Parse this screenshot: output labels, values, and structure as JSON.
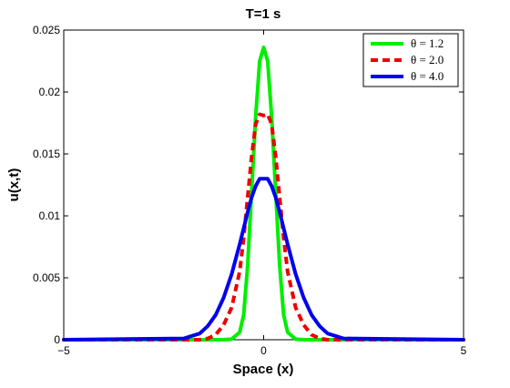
{
  "chart_data": {
    "type": "line",
    "title": "T=1 s",
    "xlabel": "Space (x)",
    "ylabel": "u(x,t)",
    "xlim": [
      -5,
      5
    ],
    "ylim": [
      0,
      0.025
    ],
    "xticks": [
      -5,
      0,
      5
    ],
    "xtick_labels": [
      "−5",
      "0",
      "5"
    ],
    "yticks": [
      0,
      0.005,
      0.01,
      0.015,
      0.02,
      0.025
    ],
    "ytick_labels": [
      "0",
      "0.005",
      "0.01",
      "0.015",
      "0.02",
      "0.025"
    ],
    "grid": false,
    "legend_position": "top-right",
    "x": [
      -5,
      -2,
      -1.6,
      -1.4,
      -1.2,
      -1.0,
      -0.8,
      -0.6,
      -0.5,
      -0.4,
      -0.3,
      -0.2,
      -0.1,
      0,
      0.1,
      0.2,
      0.3,
      0.4,
      0.5,
      0.6,
      0.8,
      1.0,
      1.2,
      1.4,
      1.6,
      2,
      5
    ],
    "series": [
      {
        "name": "θ = 1.2",
        "color": "#00ee00",
        "style": "solid",
        "values": [
          0,
          0,
          0,
          0,
          0,
          0,
          5e-05,
          0.0006,
          0.002,
          0.006,
          0.012,
          0.018,
          0.0225,
          0.0236,
          0.0225,
          0.018,
          0.012,
          0.006,
          0.002,
          0.0006,
          5e-05,
          0,
          0,
          0,
          0,
          0,
          0
        ]
      },
      {
        "name": "θ = 2.0",
        "color": "#ee0000",
        "style": "dashed",
        "values": [
          0,
          0,
          0,
          0.0001,
          0.0004,
          0.0012,
          0.0026,
          0.0055,
          0.0082,
          0.0115,
          0.0148,
          0.0174,
          0.0182,
          0.0181,
          0.0182,
          0.0174,
          0.0148,
          0.0115,
          0.0082,
          0.0055,
          0.0026,
          0.0012,
          0.0004,
          0.0001,
          0,
          0,
          0
        ]
      },
      {
        "name": "θ = 4.0",
        "color": "#0000ee",
        "style": "solid",
        "values": [
          0,
          0.0001,
          0.0005,
          0.0011,
          0.002,
          0.0034,
          0.0053,
          0.0077,
          0.009,
          0.0103,
          0.0115,
          0.0124,
          0.013,
          0.013,
          0.013,
          0.0124,
          0.0115,
          0.0103,
          0.009,
          0.0077,
          0.0053,
          0.0034,
          0.002,
          0.0011,
          0.0005,
          0.0001,
          0
        ]
      }
    ]
  }
}
